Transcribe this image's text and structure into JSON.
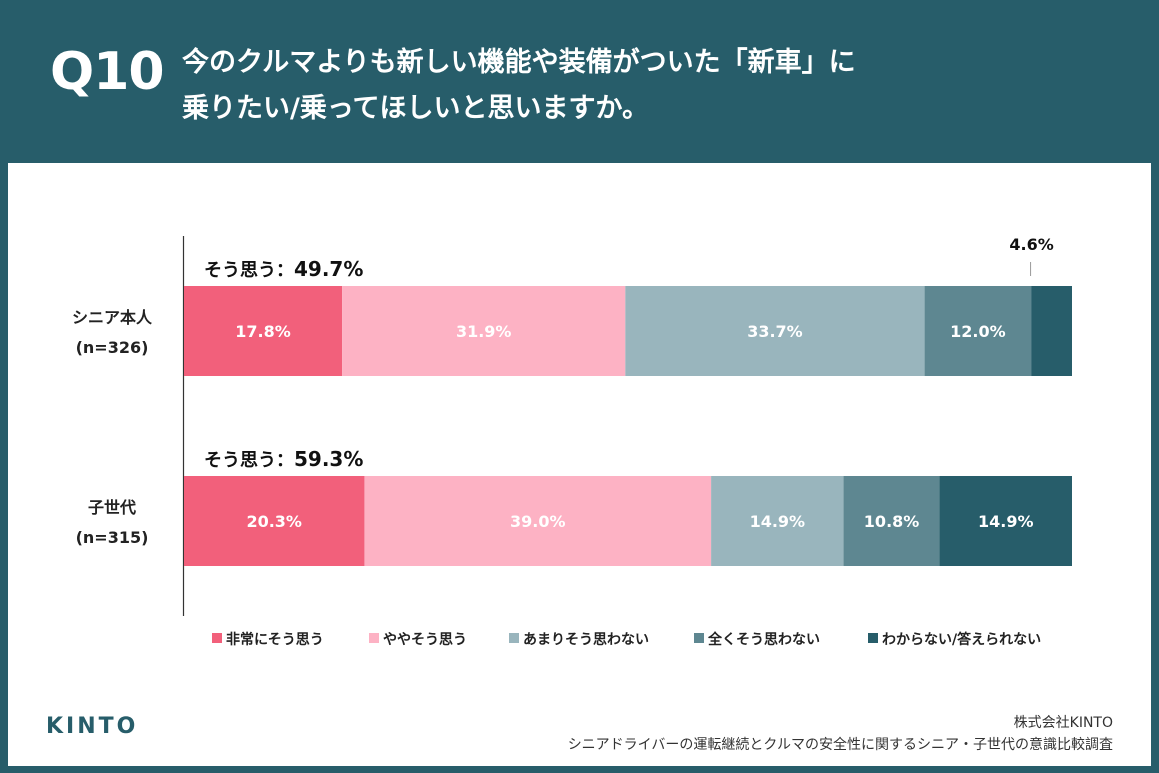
{
  "header": {
    "question_number": "Q10",
    "title_line1": "今のクルマよりも新しい機能や装備がついた「新車」に",
    "title_line2": "乗りたい/乗ってほしいと思いますか。"
  },
  "colors": {
    "header_bg": "#275d6a",
    "strongly_agree": "#f2607b",
    "somewhat_agree": "#fdb2c4",
    "not_really": "#99b5bd",
    "not_at_all": "#5e8791",
    "dont_know": "#275d6a"
  },
  "chart_data": {
    "type": "bar",
    "orientation": "horizontal",
    "stacked": true,
    "unit": "%",
    "categories": [
      {
        "label": "シニア本人",
        "n_label": "(n=326)",
        "agree_label": "そう思う：",
        "agree_value": "49.7%"
      },
      {
        "label": "子世代",
        "n_label": "(n=315)",
        "agree_label": "そう思う：",
        "agree_value": "59.3%"
      }
    ],
    "series": [
      {
        "name": "非常にそう思う",
        "color": "#f2607b",
        "values": [
          17.8,
          20.3
        ],
        "labels": [
          "17.8%",
          "20.3%"
        ]
      },
      {
        "name": "ややそう思う",
        "color": "#fdb2c4",
        "values": [
          31.9,
          39.0
        ],
        "labels": [
          "31.9%",
          "39.0%"
        ]
      },
      {
        "name": "あまりそう思わない",
        "color": "#99b5bd",
        "values": [
          33.7,
          14.9
        ],
        "labels": [
          "33.7%",
          "14.9%"
        ]
      },
      {
        "name": "全くそう思わない",
        "color": "#5e8791",
        "values": [
          12.0,
          10.8
        ],
        "labels": [
          "12.0%",
          "10.8%"
        ]
      },
      {
        "name": "わからない/答えられない",
        "color": "#275d6a",
        "values": [
          4.6,
          14.9
        ],
        "labels": [
          "4.6%",
          "14.9%"
        ]
      }
    ],
    "legend_position": "bottom",
    "grid": false
  },
  "footer": {
    "logo": "KINTO",
    "company": "株式会社KINTO",
    "survey": "シニアドライバーの運転継続とクルマの安全性に関するシニア・子世代の意識比較調査"
  }
}
